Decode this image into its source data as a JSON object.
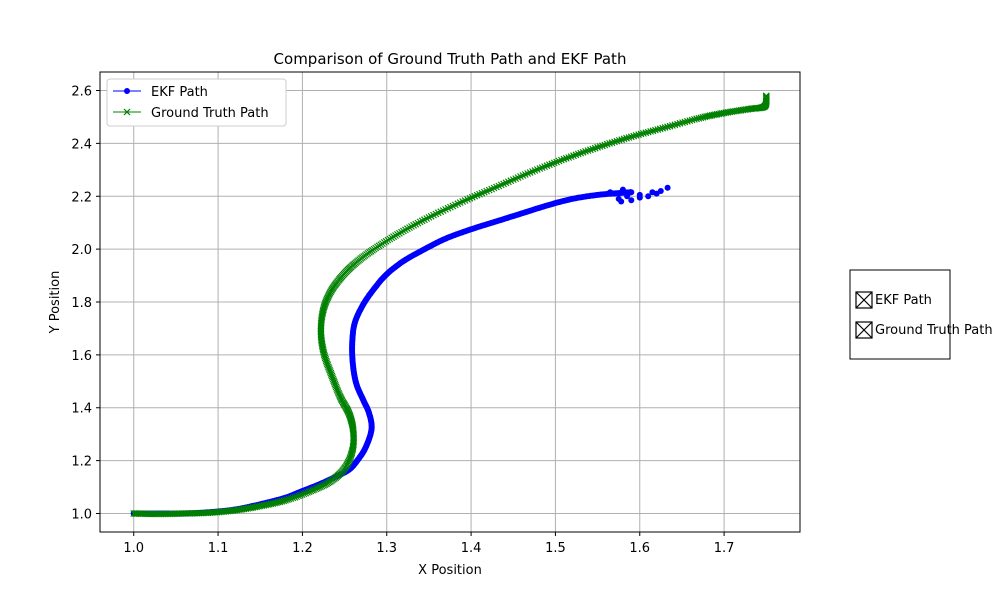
{
  "chart_data": {
    "type": "line",
    "title": "Comparison of Ground Truth Path and EKF Path",
    "xlabel": "X Position",
    "ylabel": "Y Position",
    "xlim": [
      0.96,
      1.79
    ],
    "ylim": [
      0.93,
      2.67
    ],
    "xticks": [
      1.0,
      1.1,
      1.2,
      1.3,
      1.4,
      1.5,
      1.6,
      1.7
    ],
    "yticks": [
      1.0,
      1.2,
      1.4,
      1.6,
      1.8,
      2.0,
      2.2,
      2.4,
      2.6
    ],
    "grid": true,
    "legend_position": "upper-left",
    "series": [
      {
        "name": "EKF Path",
        "color": "#0000ff",
        "marker": "circle",
        "points": [
          [
            1.0,
            1.0
          ],
          [
            1.03,
            1.0
          ],
          [
            1.06,
            1.0
          ],
          [
            1.09,
            1.005
          ],
          [
            1.12,
            1.015
          ],
          [
            1.15,
            1.035
          ],
          [
            1.18,
            1.06
          ],
          [
            1.2,
            1.085
          ],
          [
            1.22,
            1.11
          ],
          [
            1.24,
            1.14
          ],
          [
            1.255,
            1.165
          ],
          [
            1.265,
            1.2
          ],
          [
            1.275,
            1.25
          ],
          [
            1.282,
            1.32
          ],
          [
            1.279,
            1.38
          ],
          [
            1.272,
            1.43
          ],
          [
            1.264,
            1.49
          ],
          [
            1.26,
            1.56
          ],
          [
            1.259,
            1.64
          ],
          [
            1.262,
            1.72
          ],
          [
            1.272,
            1.79
          ],
          [
            1.285,
            1.85
          ],
          [
            1.3,
            1.905
          ],
          [
            1.32,
            1.955
          ],
          [
            1.345,
            2.0
          ],
          [
            1.37,
            2.04
          ],
          [
            1.4,
            2.075
          ],
          [
            1.43,
            2.105
          ],
          [
            1.46,
            2.135
          ],
          [
            1.49,
            2.165
          ],
          [
            1.52,
            2.19
          ],
          [
            1.55,
            2.205
          ],
          [
            1.575,
            2.212
          ],
          [
            1.59,
            2.215
          ]
        ],
        "noise_points": [
          [
            1.575,
            2.19
          ],
          [
            1.585,
            2.2
          ],
          [
            1.59,
            2.185
          ],
          [
            1.6,
            2.195
          ],
          [
            1.61,
            2.2
          ],
          [
            1.615,
            2.215
          ],
          [
            1.62,
            2.21
          ],
          [
            1.625,
            2.22
          ],
          [
            1.633,
            2.232
          ],
          [
            1.578,
            2.18
          ],
          [
            1.57,
            2.21
          ],
          [
            1.565,
            2.215
          ],
          [
            1.58,
            2.225
          ],
          [
            1.6,
            2.205
          ]
        ]
      },
      {
        "name": "Ground Truth Path",
        "color": "#008000",
        "marker": "x",
        "points": [
          [
            1.0,
            1.0
          ],
          [
            1.03,
            0.998
          ],
          [
            1.06,
            1.0
          ],
          [
            1.09,
            1.003
          ],
          [
            1.12,
            1.012
          ],
          [
            1.15,
            1.028
          ],
          [
            1.18,
            1.05
          ],
          [
            1.21,
            1.085
          ],
          [
            1.235,
            1.125
          ],
          [
            1.252,
            1.18
          ],
          [
            1.26,
            1.25
          ],
          [
            1.26,
            1.32
          ],
          [
            1.255,
            1.38
          ],
          [
            1.245,
            1.44
          ],
          [
            1.235,
            1.52
          ],
          [
            1.226,
            1.6
          ],
          [
            1.222,
            1.68
          ],
          [
            1.224,
            1.76
          ],
          [
            1.232,
            1.83
          ],
          [
            1.245,
            1.89
          ],
          [
            1.262,
            1.945
          ],
          [
            1.285,
            2.0
          ],
          [
            1.315,
            2.06
          ],
          [
            1.35,
            2.12
          ],
          [
            1.39,
            2.18
          ],
          [
            1.43,
            2.235
          ],
          [
            1.47,
            2.29
          ],
          [
            1.51,
            2.34
          ],
          [
            1.55,
            2.385
          ],
          [
            1.59,
            2.425
          ],
          [
            1.63,
            2.46
          ],
          [
            1.67,
            2.495
          ],
          [
            1.7,
            2.515
          ],
          [
            1.73,
            2.53
          ],
          [
            1.748,
            2.54
          ],
          [
            1.75,
            2.58
          ]
        ]
      }
    ],
    "secondary_legend": {
      "items": [
        {
          "name": "EKF Path"
        },
        {
          "name": "Ground Truth Path"
        }
      ]
    }
  }
}
